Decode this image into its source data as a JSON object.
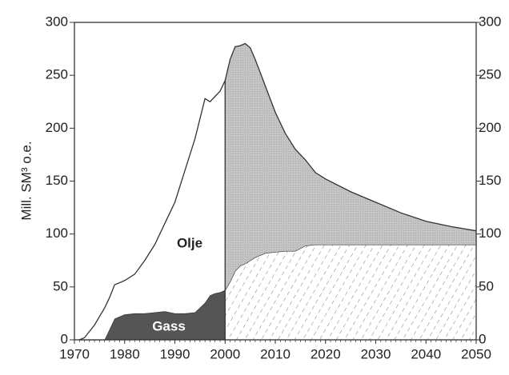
{
  "chart_data": {
    "type": "stacked_area",
    "y_label": "Mill. SM³ o.e.",
    "x": [
      1971,
      1972,
      1974,
      1976,
      1977,
      1978,
      1980,
      1982,
      1984,
      1986,
      1988,
      1990,
      1992,
      1994,
      1996,
      1997,
      1998,
      1999,
      2000,
      2001,
      2002,
      2003,
      2004,
      2005,
      2006,
      2008,
      2010,
      2012,
      2014,
      2016,
      2018,
      2020,
      2025,
      2030,
      2035,
      2040,
      2045,
      2050
    ],
    "series": [
      {
        "name": "Gass",
        "color": "#555555",
        "forecast_color": "#ffffff",
        "values": [
          0,
          0,
          0,
          0,
          10,
          20,
          24,
          25,
          25,
          26,
          27,
          25,
          25,
          26,
          35,
          42,
          44,
          45,
          47,
          55,
          65,
          70,
          72,
          75,
          78,
          82,
          83,
          84,
          84,
          89,
          90,
          90,
          90,
          90,
          90,
          90,
          90,
          90
        ]
      },
      {
        "name": "Olje",
        "color": "#ffffff",
        "forecast_color": "#c4c4c4",
        "values": [
          0,
          2,
          14,
          30,
          30,
          32,
          32,
          37,
          50,
          64,
          83,
          105,
          135,
          164,
          193,
          183,
          186,
          190,
          198,
          210,
          212,
          208,
          208,
          201,
          187,
          158,
          132,
          111,
          96,
          81,
          68,
          62,
          50,
          40,
          30,
          22,
          17,
          13
        ]
      }
    ],
    "xlim": [
      1970,
      2050
    ],
    "xticks": [
      1970,
      1980,
      1990,
      2000,
      2010,
      2020,
      2030,
      2040,
      2050
    ],
    "ylim": [
      0,
      300
    ],
    "yticks": [
      0,
      50,
      100,
      150,
      200,
      250,
      300
    ]
  }
}
